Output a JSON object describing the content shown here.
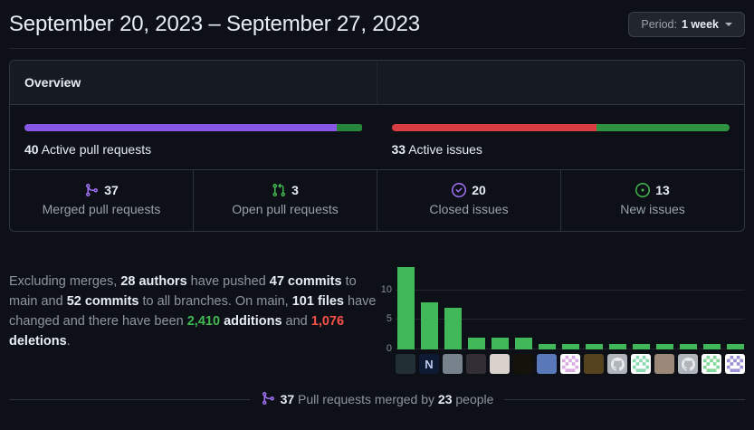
{
  "header": {
    "title": "September 20, 2023 – September 27, 2023",
    "period_label": "Period:",
    "period_value": "1 week"
  },
  "overview": {
    "title": "Overview",
    "pull_requests": {
      "count": "40",
      "text": " Active pull requests",
      "merged_pct": 92.5,
      "open_pct": 7.5,
      "merged_color": "#8957e5",
      "open_color": "#26873a"
    },
    "issues": {
      "count": "33",
      "text": " Active issues",
      "closed_pct": 60.6,
      "new_pct": 39.4,
      "closed_color": "#d93d42",
      "new_color": "#2f9240"
    },
    "stats": [
      {
        "icon": "git-merge-icon",
        "color": "#a371f7",
        "value": "37",
        "label": "Merged pull requests"
      },
      {
        "icon": "git-pull-request-icon",
        "color": "#3fb950",
        "value": "3",
        "label": "Open pull requests"
      },
      {
        "icon": "issue-closed-icon",
        "color": "#a371f7",
        "value": "20",
        "label": "Closed issues"
      },
      {
        "icon": "issue-opened-icon",
        "color": "#3fb950",
        "value": "13",
        "label": "New issues"
      }
    ]
  },
  "summary_segments": [
    {
      "text": "Excluding merges, ",
      "style": "muted"
    },
    {
      "text": "28 authors",
      "style": "bold"
    },
    {
      "text": " have pushed ",
      "style": "muted"
    },
    {
      "text": "47 commits",
      "style": "bold"
    },
    {
      "text": " to main and ",
      "style": "muted"
    },
    {
      "text": "52 commits",
      "style": "bold"
    },
    {
      "text": " to all branches. On main, ",
      "style": "muted"
    },
    {
      "text": "101 files",
      "style": "bold"
    },
    {
      "text": " have changed and there have been ",
      "style": "muted"
    },
    {
      "text": "2,410",
      "style": "green-bold"
    },
    {
      "text": " ",
      "style": "muted"
    },
    {
      "text": "additions",
      "style": "bold"
    },
    {
      "text": " and ",
      "style": "muted"
    },
    {
      "text": "1,076",
      "style": "red-bold"
    },
    {
      "text": " ",
      "style": "muted"
    },
    {
      "text": "deletions",
      "style": "bold"
    },
    {
      "text": ".",
      "style": "muted"
    }
  ],
  "chart_data": {
    "type": "bar",
    "title": "Commits per author (top 15)",
    "values": [
      14,
      8,
      7,
      2,
      2,
      2,
      1,
      1,
      1,
      1,
      1,
      1,
      1,
      1,
      1
    ],
    "categories": [
      "author avatar 1",
      "author avatar 2",
      "author avatar 3",
      "author avatar 4",
      "author avatar 5",
      "author avatar 6",
      "author avatar 7",
      "author avatar 8",
      "author avatar 9",
      "author avatar 10",
      "author avatar 11",
      "author avatar 12",
      "author avatar 13",
      "author avatar 14",
      "author avatar 15"
    ],
    "yticks": [
      0,
      5,
      10
    ],
    "ylim": [
      0,
      14.6
    ],
    "bar_color": "#40b758",
    "grid": true,
    "legend": "none"
  },
  "avatars": [
    {
      "kind": "photo",
      "bg": "#223036"
    },
    {
      "kind": "letter",
      "bg": "#0e1a33",
      "fg": "#b9c9f0",
      "glyph": "N"
    },
    {
      "kind": "photo",
      "bg": "#78828c"
    },
    {
      "kind": "photo",
      "bg": "#332d36"
    },
    {
      "kind": "photo",
      "bg": "#d9d2cc"
    },
    {
      "kind": "photo",
      "bg": "#15110b"
    },
    {
      "kind": "photo",
      "bg": "#5a79b8"
    },
    {
      "kind": "identicon",
      "bg": "#ffffff",
      "fg": "#dba9e3"
    },
    {
      "kind": "photo",
      "bg": "#55431f"
    },
    {
      "kind": "octocat",
      "bg": "#afb5bb",
      "fg": "#e9ebee"
    },
    {
      "kind": "identicon",
      "bg": "#ffffff",
      "fg": "#88d8b0"
    },
    {
      "kind": "photo",
      "bg": "#9b8878"
    },
    {
      "kind": "octocat",
      "bg": "#afb5bb",
      "fg": "#e9ebee"
    },
    {
      "kind": "identicon",
      "bg": "#ffffff",
      "fg": "#7fd898"
    },
    {
      "kind": "identicon",
      "bg": "#ffffff",
      "fg": "#9a8fd4"
    }
  ],
  "footer": {
    "icon": "git-merge-icon",
    "icon_color": "#a371f7",
    "merged_count": "37",
    "text_mid": " Pull requests merged by ",
    "people_count": "23",
    "text_end": " people"
  }
}
